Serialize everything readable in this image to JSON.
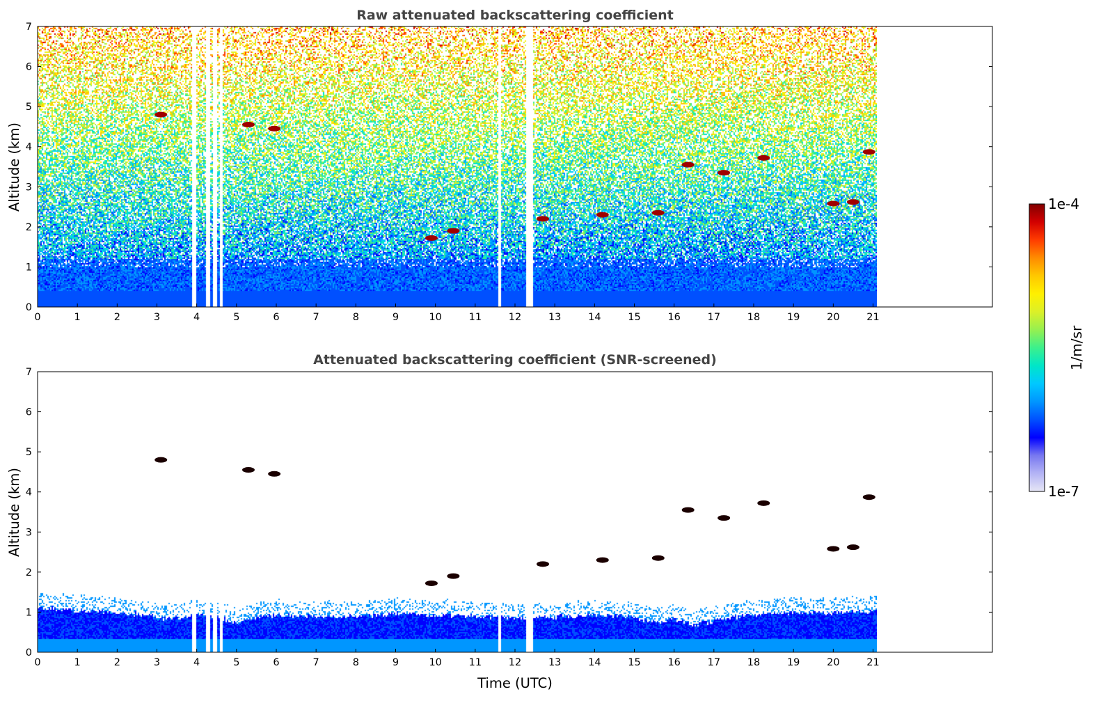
{
  "chart_data": [
    {
      "type": "heatmap",
      "title": "Raw attenuated backscattering coefficient",
      "xlabel": "",
      "ylabel": "Altitude (km)",
      "xlim": [
        0,
        24
      ],
      "ylim": [
        0,
        7
      ],
      "xticks": [
        0,
        1,
        2,
        3,
        4,
        5,
        6,
        7,
        8,
        9,
        10,
        11,
        12,
        13,
        14,
        15,
        16,
        17,
        18,
        19,
        20,
        21
      ],
      "yticks": [
        0,
        1,
        2,
        3,
        4,
        5,
        6,
        7
      ],
      "data_extent_x": [
        0,
        21.1
      ],
      "data_gaps_x": [
        [
          3.85,
          3.98
        ],
        [
          4.22,
          4.32
        ],
        [
          4.38,
          4.48
        ],
        [
          4.55,
          4.65
        ],
        [
          11.55,
          11.62
        ],
        [
          12.25,
          12.45
        ]
      ],
      "background_profile": "dense blue below ~1 km, speckled cyan/green 1-4 km, yellow/orange speckle 4-7 km",
      "cloud_features": [
        {
          "t": 3.1,
          "alt": 4.8
        },
        {
          "t": 5.3,
          "alt": 4.55
        },
        {
          "t": 5.95,
          "alt": 4.45
        },
        {
          "t": 9.9,
          "alt": 1.72
        },
        {
          "t": 10.45,
          "alt": 1.9
        },
        {
          "t": 12.7,
          "alt": 2.2
        },
        {
          "t": 14.2,
          "alt": 2.3
        },
        {
          "t": 15.6,
          "alt": 2.35
        },
        {
          "t": 16.35,
          "alt": 3.55
        },
        {
          "t": 17.25,
          "alt": 3.35
        },
        {
          "t": 18.25,
          "alt": 3.72
        },
        {
          "t": 20.0,
          "alt": 2.58
        },
        {
          "t": 20.5,
          "alt": 2.62
        },
        {
          "t": 20.9,
          "alt": 3.87
        }
      ]
    },
    {
      "type": "heatmap",
      "title": "Attenuated backscattering coefficient (SNR-screened)",
      "xlabel": "Time (UTC)",
      "ylabel": "Altitude (km)",
      "xlim": [
        0,
        24
      ],
      "ylim": [
        0,
        7
      ],
      "xticks": [
        0,
        1,
        2,
        3,
        4,
        5,
        6,
        7,
        8,
        9,
        10,
        11,
        12,
        13,
        14,
        15,
        16,
        17,
        18,
        19,
        20,
        21
      ],
      "yticks": [
        0,
        1,
        2,
        3,
        4,
        5,
        6,
        7
      ],
      "data_extent_x": [
        0,
        21.1
      ],
      "boundary_layer_top_km": [
        [
          0,
          1.15
        ],
        [
          1,
          1.05
        ],
        [
          2,
          1.0
        ],
        [
          2.8,
          0.95
        ],
        [
          3.0,
          0.85
        ],
        [
          3.3,
          0.85
        ],
        [
          3.6,
          0.88
        ],
        [
          4.0,
          0.95
        ],
        [
          4.5,
          0.92
        ],
        [
          5.0,
          0.72
        ],
        [
          5.5,
          0.9
        ],
        [
          6,
          0.95
        ],
        [
          7,
          0.9
        ],
        [
          8,
          0.92
        ],
        [
          9,
          0.97
        ],
        [
          10,
          0.95
        ],
        [
          11,
          0.9
        ],
        [
          12,
          0.88
        ],
        [
          13,
          0.9
        ],
        [
          14,
          0.95
        ],
        [
          15,
          0.9
        ],
        [
          15.5,
          0.75
        ],
        [
          16,
          0.85
        ],
        [
          16.5,
          0.7
        ],
        [
          17,
          0.8
        ],
        [
          18,
          0.95
        ],
        [
          19,
          1.0
        ],
        [
          20,
          1.0
        ],
        [
          21.1,
          1.05
        ]
      ],
      "cloud_features": [
        {
          "t": 3.1,
          "alt": 4.8
        },
        {
          "t": 5.3,
          "alt": 4.55
        },
        {
          "t": 5.95,
          "alt": 4.45
        },
        {
          "t": 9.9,
          "alt": 1.72
        },
        {
          "t": 10.45,
          "alt": 1.9
        },
        {
          "t": 12.7,
          "alt": 2.2
        },
        {
          "t": 14.2,
          "alt": 2.3
        },
        {
          "t": 15.6,
          "alt": 2.35
        },
        {
          "t": 16.35,
          "alt": 3.55
        },
        {
          "t": 17.25,
          "alt": 3.35
        },
        {
          "t": 18.25,
          "alt": 3.72
        },
        {
          "t": 20.0,
          "alt": 2.58
        },
        {
          "t": 20.5,
          "alt": 2.62
        },
        {
          "t": 20.9,
          "alt": 3.87
        }
      ]
    }
  ],
  "colorbar": {
    "max_label": "1e-4",
    "min_label": "1e-7",
    "unit_label": "1/m/sr",
    "scale": "log",
    "colormap": [
      "#e6e6f5",
      "#b4b4f5",
      "#7878f0",
      "#0000ff",
      "#0050ff",
      "#0096ff",
      "#00c8ff",
      "#00e6c8",
      "#3cf08c",
      "#96f050",
      "#dcf028",
      "#fff000",
      "#ffc800",
      "#ff8c00",
      "#ff3c00",
      "#d20000",
      "#820000"
    ]
  }
}
